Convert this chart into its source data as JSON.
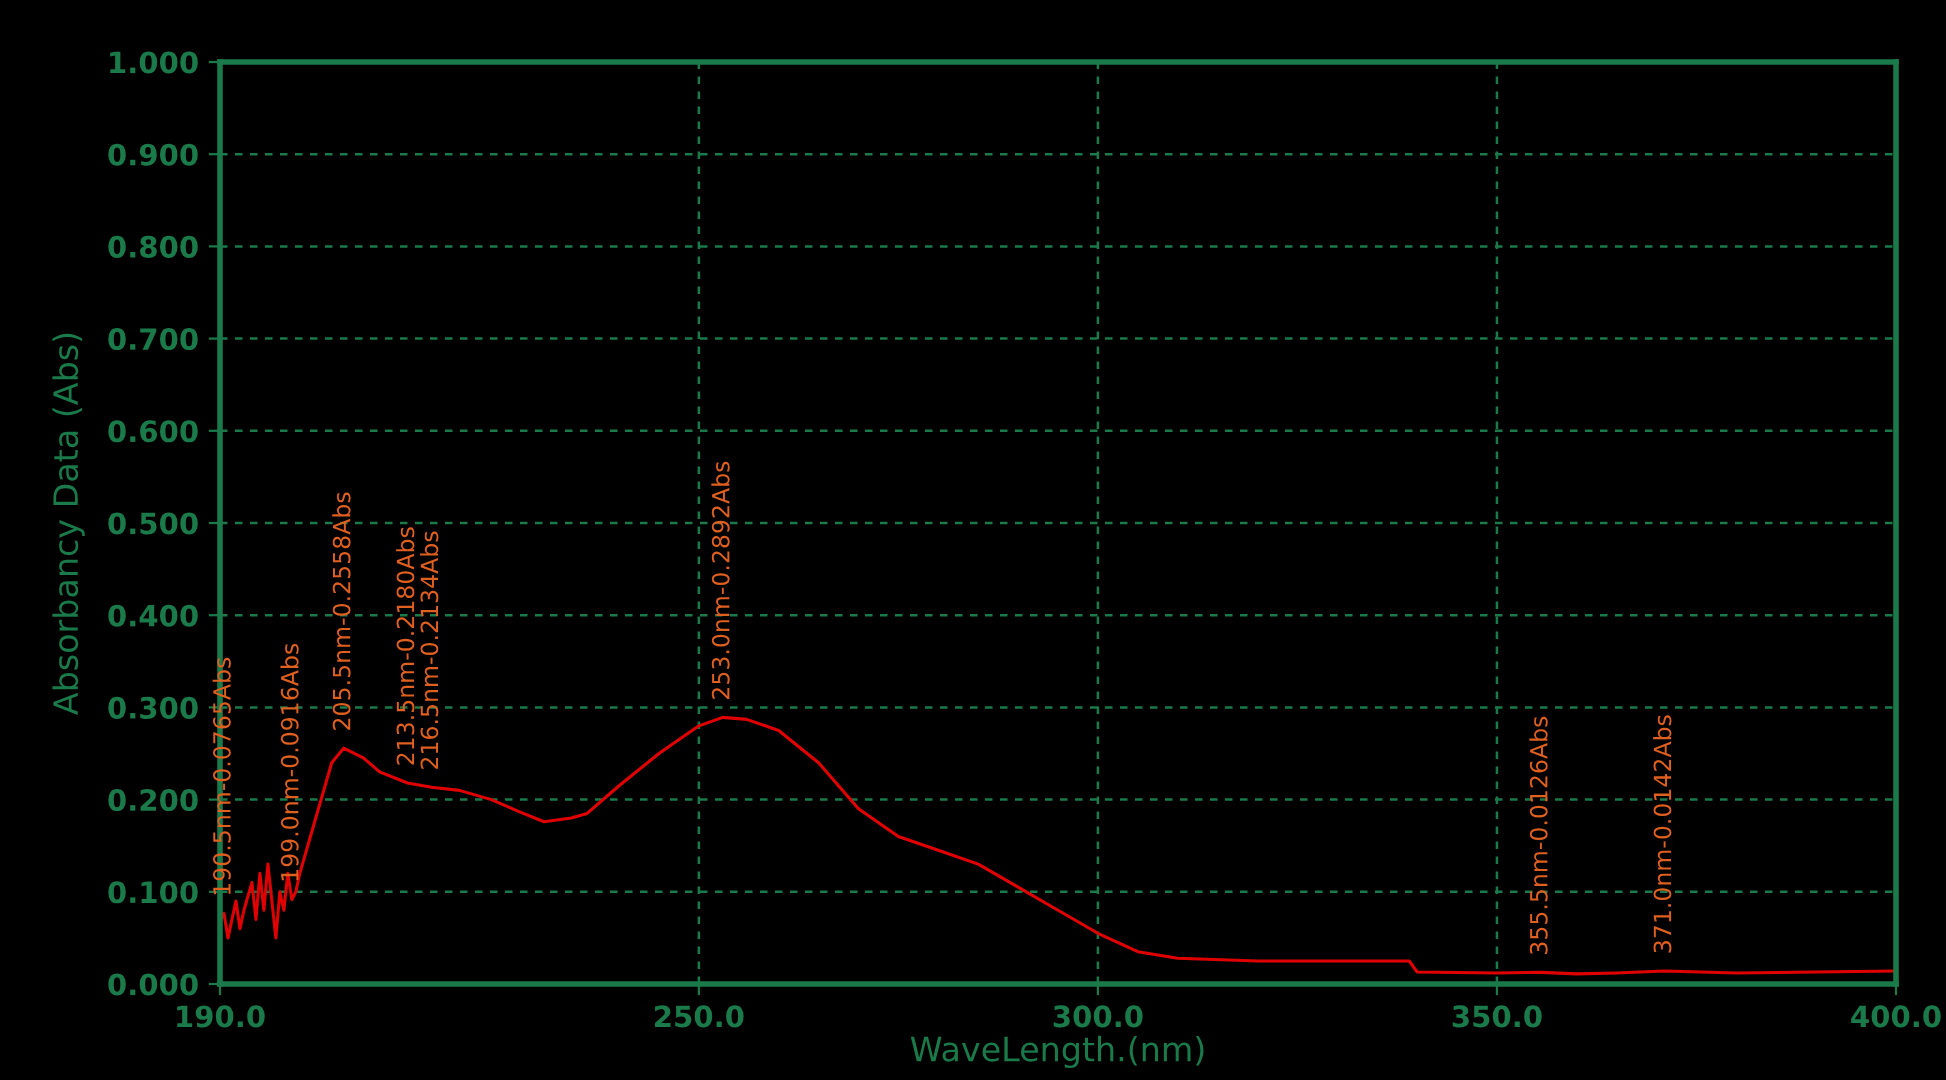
{
  "chart_data": {
    "type": "line",
    "xlabel": "WaveLength.(nm)",
    "ylabel": "Absorbancy Data (Abs)",
    "xlim": [
      190,
      400
    ],
    "ylim": [
      0,
      1
    ],
    "xticks": [
      {
        "value": 190,
        "label": "190.0"
      },
      {
        "value": 250,
        "label": "250.0"
      },
      {
        "value": 300,
        "label": "300.0"
      },
      {
        "value": 350,
        "label": "350.0"
      },
      {
        "value": 400,
        "label": "400.0"
      }
    ],
    "yticks": [
      {
        "value": 0,
        "label": "0.000"
      },
      {
        "value": 0.1,
        "label": "0.100"
      },
      {
        "value": 0.2,
        "label": "0.200"
      },
      {
        "value": 0.3,
        "label": "0.300"
      },
      {
        "value": 0.4,
        "label": "0.400"
      },
      {
        "value": 0.5,
        "label": "0.500"
      },
      {
        "value": 0.6,
        "label": "0.600"
      },
      {
        "value": 0.7,
        "label": "0.700"
      },
      {
        "value": 0.8,
        "label": "0.800"
      },
      {
        "value": 0.9,
        "label": "0.900"
      },
      {
        "value": 1,
        "label": "1.000"
      }
    ],
    "grid": true,
    "line_style": "solid",
    "marker": "none",
    "series": [
      {
        "color": "#e00000",
        "x": [
          190,
          190.5,
          191,
          192,
          192.5,
          193,
          194,
          194.5,
          195,
          195.5,
          196,
          196.5,
          197,
          197.5,
          198,
          198.5,
          199,
          199.5,
          200,
          202,
          204,
          205.5,
          208,
          210,
          213.5,
          216.5,
          220,
          224,
          228,
          230.6,
          234,
          236,
          240,
          245,
          250,
          253,
          256,
          260,
          265,
          270,
          275,
          280,
          285,
          290,
          295,
          300,
          305,
          310,
          320,
          339,
          340,
          350,
          355.5,
          360,
          365,
          371,
          380,
          390,
          400
        ],
        "values": [
          0.07,
          0.0765,
          0.05,
          0.09,
          0.06,
          0.08,
          0.11,
          0.07,
          0.12,
          0.08,
          0.13,
          0.09,
          0.05,
          0.1,
          0.08,
          0.12,
          0.0916,
          0.1,
          0.12,
          0.18,
          0.24,
          0.2558,
          0.245,
          0.23,
          0.218,
          0.2134,
          0.21,
          0.2,
          0.185,
          0.176,
          0.18,
          0.185,
          0.215,
          0.25,
          0.28,
          0.2892,
          0.287,
          0.275,
          0.24,
          0.19,
          0.16,
          0.145,
          0.13,
          0.105,
          0.08,
          0.055,
          0.035,
          0.028,
          0.025,
          0.025,
          0.013,
          0.012,
          0.0126,
          0.011,
          0.012,
          0.0142,
          0.012,
          0.013,
          0.014
        ]
      }
    ],
    "annotations": [
      {
        "text": "190.5nm-0.0765Abs",
        "x": 190.5,
        "y": 0.0765
      },
      {
        "text": "199.0nm-0.0916Abs",
        "x": 199,
        "y": 0.0916
      },
      {
        "text": "205.5nm-0.2558Abs",
        "x": 205.5,
        "y": 0.2558
      },
      {
        "text": "213.5nm-0.2180Abs",
        "x": 213.5,
        "y": 0.218
      },
      {
        "text": "216.5nm-0.2134Abs",
        "x": 216.5,
        "y": 0.2134
      },
      {
        "text": "253.0nm-0.2892Abs",
        "x": 253,
        "y": 0.2892
      },
      {
        "text": "355.5nm-0.0126Abs",
        "x": 355.5,
        "y": 0.0126
      },
      {
        "text": "371.0nm-0.0142Abs",
        "x": 371,
        "y": 0.0142
      }
    ]
  }
}
